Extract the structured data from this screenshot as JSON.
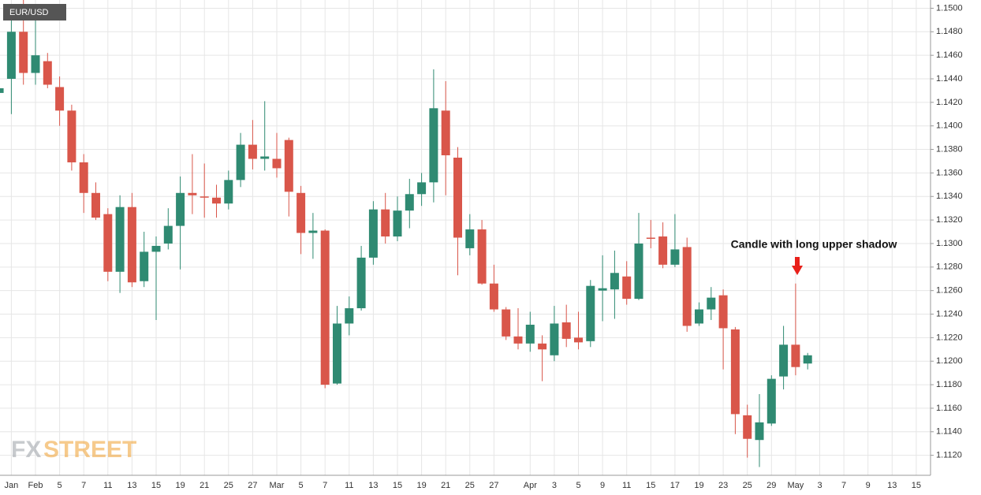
{
  "chart_data": {
    "type": "candlestick",
    "title": "EUR/USD",
    "annotation": "Candle with long upper shadow",
    "watermark": [
      "FX",
      "STREET"
    ],
    "up_color": "#2f8a72",
    "down_color": "#d9564a",
    "grid": true,
    "categories": [
      null,
      "Jan",
      null,
      "Feb",
      null,
      "5",
      null,
      "7",
      null,
      "11",
      null,
      "13",
      null,
      "15",
      null,
      "19",
      null,
      "21",
      null,
      "25",
      null,
      "27",
      null,
      "Mar",
      null,
      "5",
      null,
      "7",
      null,
      "11",
      null,
      "13",
      null,
      "15",
      null,
      "19",
      null,
      "21",
      null,
      "25",
      null,
      "27",
      null,
      null,
      "Apr",
      null,
      "3",
      null,
      "5",
      null,
      "9",
      null,
      "11",
      null,
      "15",
      null,
      "17",
      null,
      "19",
      null,
      "23",
      null,
      "25",
      null,
      "29",
      null,
      "May",
      null,
      "3",
      null,
      "7",
      null,
      "9",
      null,
      "13",
      null,
      "15"
    ],
    "open": [
      1.1428,
      1.144,
      1.148,
      1.1445,
      1.1455,
      1.1433,
      1.1413,
      1.1369,
      1.1343,
      1.1325,
      1.1276,
      1.1331,
      1.1268,
      1.1293,
      1.13,
      1.1315,
      1.1343,
      1.134,
      1.1339,
      1.1334,
      1.1354,
      1.1384,
      1.1372,
      1.1372,
      1.1388,
      1.1343,
      1.1309,
      1.1311,
      1.1181,
      1.1232,
      1.1245,
      1.1288,
      1.1329,
      1.1306,
      1.1328,
      1.1342,
      1.1352,
      1.1413,
      1.1373,
      1.1296,
      1.1312,
      1.1266,
      1.1244,
      1.1221,
      1.1215,
      1.1215,
      1.1205,
      1.1233,
      1.122,
      1.1217,
      1.126,
      1.1261,
      1.1272,
      1.1253,
      1.1305,
      1.1306,
      1.1282,
      1.1297,
      1.1232,
      1.1244,
      1.1256,
      1.1227,
      1.1154,
      1.1133,
      1.1147,
      1.1187,
      1.1214,
      1.1198,
      null,
      null,
      null,
      null,
      null,
      null,
      null,
      null,
      null
    ],
    "high": [
      1.146,
      1.15,
      1.151,
      1.15,
      1.1462,
      1.1442,
      1.1418,
      1.1376,
      1.1352,
      1.133,
      1.1341,
      1.1343,
      1.131,
      1.1306,
      1.133,
      1.1357,
      1.1376,
      1.1368,
      1.135,
      1.1362,
      1.1394,
      1.1405,
      1.1421,
      1.1394,
      1.139,
      1.1349,
      1.1326,
      1.1312,
      1.1247,
      1.1255,
      1.1298,
      1.1336,
      1.1343,
      1.134,
      1.1355,
      1.136,
      1.1448,
      1.1438,
      1.1382,
      1.1325,
      1.132,
      1.1282,
      1.1246,
      1.1245,
      1.1242,
      1.1222,
      1.1247,
      1.1248,
      1.1242,
      1.1269,
      1.129,
      1.1294,
      1.1285,
      1.1326,
      1.132,
      1.1318,
      1.1325,
      1.1305,
      1.125,
      1.1263,
      1.1261,
      1.1229,
      1.1163,
      1.1172,
      1.1188,
      1.123,
      1.1266,
      1.1207,
      null,
      null,
      null,
      null,
      null,
      null,
      null,
      null,
      null
    ],
    "low": [
      1.141,
      1.141,
      1.1435,
      1.1435,
      1.1432,
      1.14,
      1.1362,
      1.1326,
      1.132,
      1.1268,
      1.1258,
      1.1263,
      1.1263,
      1.1235,
      1.1295,
      1.1278,
      1.1325,
      1.1322,
      1.1322,
      1.1329,
      1.1348,
      1.1363,
      1.1362,
      1.1356,
      1.1323,
      1.1291,
      1.1287,
      1.1177,
      1.118,
      1.1222,
      1.1243,
      1.1282,
      1.13,
      1.1302,
      1.1313,
      1.1332,
      1.1335,
      1.1341,
      1.1273,
      1.129,
      1.1265,
      1.1242,
      1.1218,
      1.121,
      1.1208,
      1.1183,
      1.12,
      1.1212,
      1.121,
      1.1212,
      1.1234,
      1.1236,
      1.1248,
      1.1252,
      1.1296,
      1.1279,
      1.128,
      1.1225,
      1.123,
      1.1235,
      1.1193,
      1.1138,
      1.1118,
      1.111,
      1.1145,
      1.1176,
      1.1188,
      1.1193,
      null,
      null,
      null,
      null,
      null,
      null,
      null,
      null,
      null
    ],
    "close": [
      1.1432,
      1.148,
      1.1445,
      1.146,
      1.1435,
      1.1413,
      1.1369,
      1.1343,
      1.1322,
      1.1276,
      1.1331,
      1.1267,
      1.1293,
      1.1298,
      1.1315,
      1.1343,
      1.1341,
      1.1339,
      1.1334,
      1.1354,
      1.1384,
      1.1372,
      1.1374,
      1.1364,
      1.1344,
      1.1309,
      1.1311,
      1.118,
      1.1232,
      1.1245,
      1.1288,
      1.1329,
      1.1306,
      1.1328,
      1.1342,
      1.1352,
      1.1415,
      1.1375,
      1.1305,
      1.1312,
      1.1266,
      1.1244,
      1.1221,
      1.1215,
      1.1231,
      1.121,
      1.1232,
      1.1219,
      1.1216,
      1.1264,
      1.1262,
      1.1275,
      1.1253,
      1.13,
      1.1304,
      1.1282,
      1.1295,
      1.123,
      1.1244,
      1.1254,
      1.1228,
      1.1155,
      1.1134,
      1.1148,
      1.1185,
      1.1214,
      1.1195,
      1.1205,
      null,
      null,
      null,
      null,
      null,
      null,
      null,
      null,
      null
    ],
    "ylim": [
      1.1103,
      1.1507
    ],
    "yticks": [
      {
        "value": 1.112,
        "label": "1.1120"
      },
      {
        "value": 1.114,
        "label": "1.1140"
      },
      {
        "value": 1.116,
        "label": "1.1160"
      },
      {
        "value": 1.118,
        "label": "1.1180"
      },
      {
        "value": 1.12,
        "label": "1.1200"
      },
      {
        "value": 1.122,
        "label": "1.1220"
      },
      {
        "value": 1.124,
        "label": "1.1240"
      },
      {
        "value": 1.126,
        "label": "1.1260"
      },
      {
        "value": 1.128,
        "label": "1.1280"
      },
      {
        "value": 1.13,
        "label": "1.1300"
      },
      {
        "value": 1.132,
        "label": "1.1320"
      },
      {
        "value": 1.134,
        "label": "1.1340"
      },
      {
        "value": 1.136,
        "label": "1.1360"
      },
      {
        "value": 1.138,
        "label": "1.1380"
      },
      {
        "value": 1.14,
        "label": "1.1400"
      },
      {
        "value": 1.142,
        "label": "1.1420"
      },
      {
        "value": 1.144,
        "label": "1.1440"
      },
      {
        "value": 1.146,
        "label": "1.1460"
      },
      {
        "value": 1.148,
        "label": "1.1480"
      },
      {
        "value": 1.15,
        "label": "1.1500"
      }
    ]
  }
}
